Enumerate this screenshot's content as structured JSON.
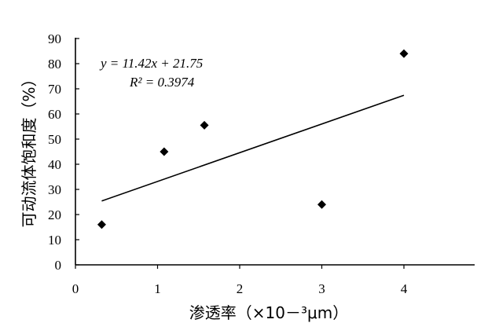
{
  "chart_data": {
    "type": "scatter",
    "title": "",
    "xlabel": "渗透率（×10－³μm）",
    "ylabel": "可动流体饱和度（%）",
    "xlim": [
      0,
      5
    ],
    "ylim": [
      0,
      90
    ],
    "x_ticks": [
      "0",
      "1",
      "2",
      "3",
      "4"
    ],
    "y_ticks": [
      "0",
      "10",
      "20",
      "30",
      "40",
      "50",
      "60",
      "70",
      "80",
      "90"
    ],
    "x_tick_values": [
      0,
      1,
      2,
      3,
      4
    ],
    "y_tick_values": [
      0,
      10,
      20,
      30,
      40,
      50,
      60,
      70,
      80,
      90
    ],
    "grid": false,
    "points": [
      {
        "x": 0.32,
        "y": 16
      },
      {
        "x": 1.08,
        "y": 45
      },
      {
        "x": 1.57,
        "y": 55.5
      },
      {
        "x": 3.0,
        "y": 24
      },
      {
        "x": 4.0,
        "y": 84
      }
    ],
    "trendline": {
      "slope": 11.42,
      "intercept": 21.75,
      "x_range": [
        0.32,
        4.0
      ],
      "equation": "y = 11.42x + 21.75",
      "r_squared_label": "R² = 0.3974"
    },
    "marker_color": "#000000"
  }
}
